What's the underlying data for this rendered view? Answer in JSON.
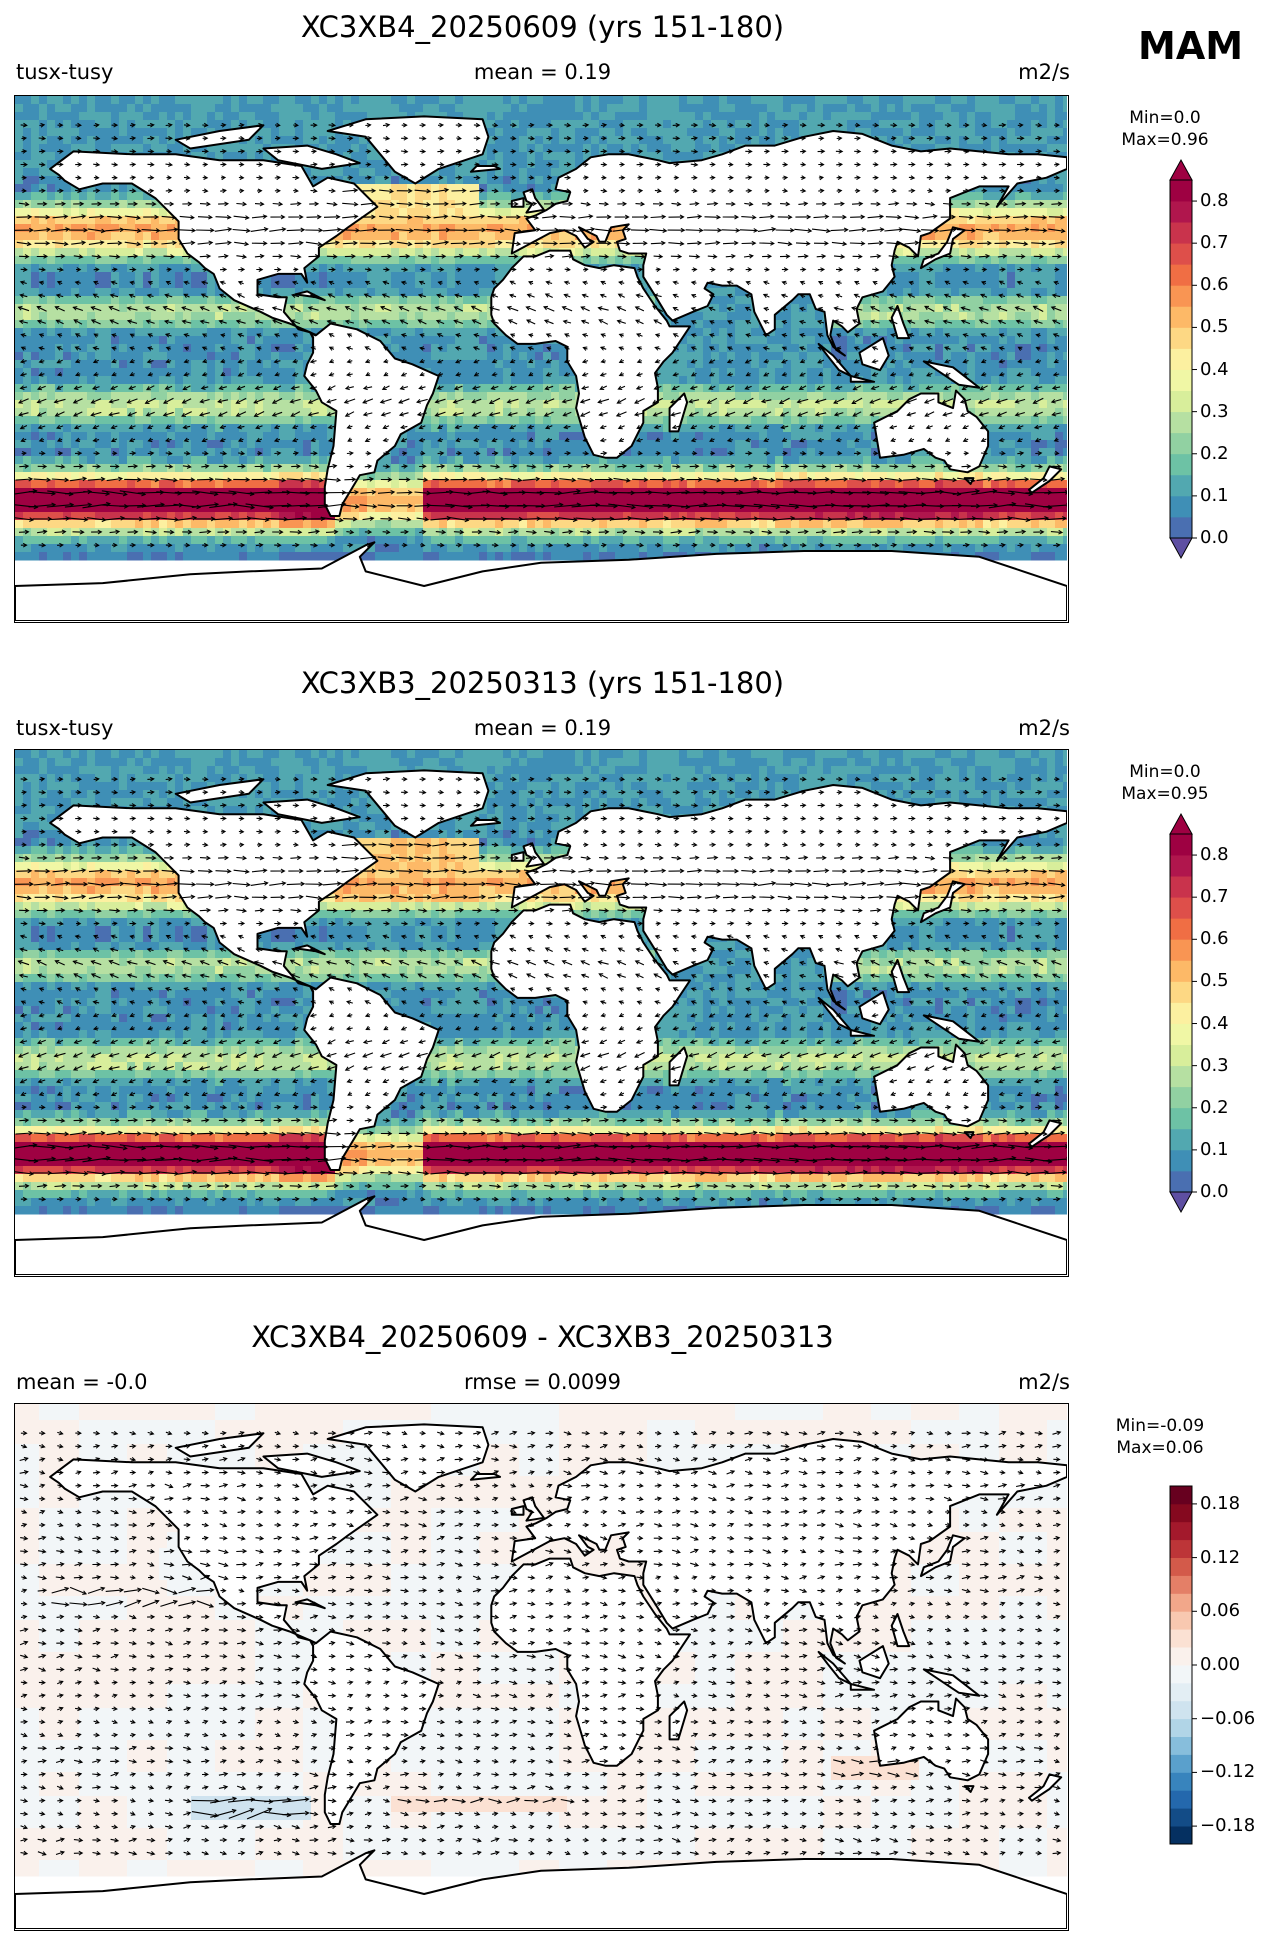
{
  "season": "MAM",
  "panels": [
    {
      "title": "XC3XB4_20250609 (yrs 151-180)",
      "left_label": "tusx-tusy",
      "center_label": "mean = 0.19",
      "right_label": "m2/s",
      "minmax": {
        "min": "Min=0.0",
        "max": "Max=0.96"
      },
      "colorbar_ticks": [
        "0.8",
        "0.7",
        "0.6",
        "0.5",
        "0.4",
        "0.3",
        "0.2",
        "0.1",
        "0.0"
      ]
    },
    {
      "title": "XC3XB3_20250313 (yrs 151-180)",
      "left_label": "tusx-tusy",
      "center_label": "mean = 0.19",
      "right_label": "m2/s",
      "minmax": {
        "min": "Min=0.0",
        "max": "Max=0.95"
      },
      "colorbar_ticks": [
        "0.8",
        "0.7",
        "0.6",
        "0.5",
        "0.4",
        "0.3",
        "0.2",
        "0.1",
        "0.0"
      ]
    },
    {
      "title": "XC3XB4_20250609 - XC3XB3_20250313",
      "left_label": "mean = -0.0",
      "center_label": "rmse = 0.0099",
      "right_label": "m2/s",
      "minmax": {
        "min": "Min=-0.09",
        "max": "Max=0.06"
      },
      "colorbar_ticks": [
        "0.18",
        "0.12",
        "0.06",
        "0.00",
        "−0.06",
        "−0.12",
        "−0.18"
      ]
    }
  ],
  "chart_data": [
    {
      "type": "heatmap",
      "title": "XC3XB4_20250609 (yrs 151-180)",
      "variable": "tusx-tusy",
      "units": "m2/s",
      "mean": 0.19,
      "min": 0.0,
      "max": 0.96,
      "colorbar": {
        "range": [
          0.0,
          0.85
        ],
        "step": 0.05,
        "ticks": [
          0.0,
          0.1,
          0.2,
          0.3,
          0.4,
          0.5,
          0.6,
          0.7,
          0.8
        ],
        "colormap": "Spectral_r",
        "extend": "both"
      },
      "vectors": true
    },
    {
      "type": "heatmap",
      "title": "XC3XB3_20250313 (yrs 151-180)",
      "variable": "tusx-tusy",
      "units": "m2/s",
      "mean": 0.19,
      "min": 0.0,
      "max": 0.95,
      "colorbar": {
        "range": [
          0.0,
          0.85
        ],
        "step": 0.05,
        "ticks": [
          0.0,
          0.1,
          0.2,
          0.3,
          0.4,
          0.5,
          0.6,
          0.7,
          0.8
        ],
        "colormap": "Spectral_r",
        "extend": "both"
      },
      "vectors": true
    },
    {
      "type": "heatmap",
      "title": "XC3XB4_20250609 - XC3XB3_20250313",
      "units": "m2/s",
      "mean": -0.0,
      "rmse": 0.0099,
      "min": -0.09,
      "max": 0.06,
      "colorbar": {
        "range": [
          -0.2,
          0.2
        ],
        "step": 0.02,
        "ticks": [
          -0.18,
          -0.12,
          -0.06,
          0.0,
          0.06,
          0.12,
          0.18
        ],
        "colormap": "RdBu_r",
        "extend": "neither"
      },
      "vectors": true
    }
  ]
}
